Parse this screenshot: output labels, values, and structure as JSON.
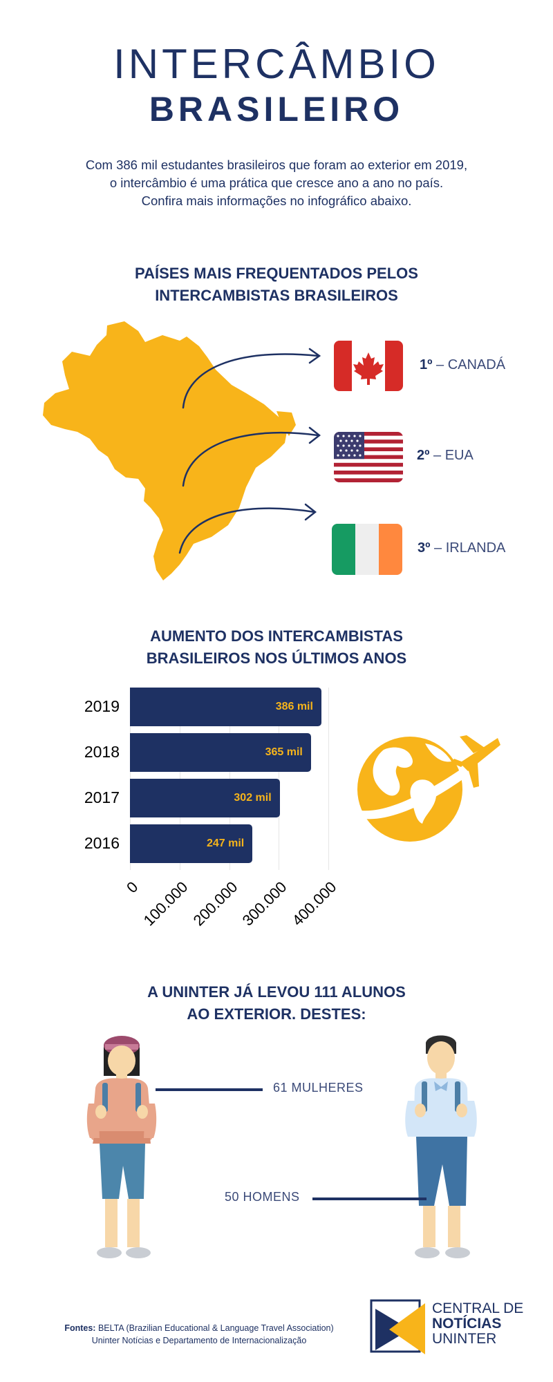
{
  "header": {
    "title_line1": "INTERCÂMBIO",
    "title_line2": "BRASILEIRO"
  },
  "intro": {
    "line1": "Com 386 mil estudantes brasileiros que foram ao exterior em 2019,",
    "line2": "o intercâmbio é uma prática que cresce ano a ano no país.",
    "line3": "Confira mais informações no infográfico abaixo."
  },
  "countries": {
    "title_line1": "PAÍSES MAIS FREQUENTADOS PELOS",
    "title_line2": "INTERCAMBISTAS BRASILEIROS",
    "items": [
      {
        "position": "1º",
        "separator": " – ",
        "name": "CANADÁ",
        "flag_icon": "canada-flag-icon"
      },
      {
        "position": "2º",
        "separator": " – ",
        "name": "EUA",
        "flag_icon": "usa-flag-icon"
      },
      {
        "position": "3º",
        "separator": " – ",
        "name": "IRLANDA",
        "flag_icon": "ireland-flag-icon"
      }
    ],
    "map_icon": "brazil-map-icon",
    "map_color": "#f8b41a"
  },
  "growth": {
    "title_line1": "AUMENTO DOS INTERCAMBISTAS",
    "title_line2": "BRASILEIROS NOS ÚLTIMOS ANOS",
    "icon": "globe-airplane-icon"
  },
  "chart_data": {
    "type": "bar",
    "orientation": "horizontal",
    "categories": [
      "2019",
      "2018",
      "2017",
      "2016"
    ],
    "values": [
      386000,
      365000,
      302000,
      247000
    ],
    "data_labels": [
      "386 mil",
      "365 mil",
      "302 mil",
      "247 mil"
    ],
    "xlim": [
      0,
      400000
    ],
    "x_ticks": [
      "0",
      "100.000",
      "200.000",
      "300.000",
      "400.000"
    ],
    "title": "",
    "xlabel": "",
    "ylabel": "",
    "bar_color": "#1e3163",
    "label_color": "#f6b41b",
    "grid": true
  },
  "uninter": {
    "title_line1": "A UNINTER JÁ LEVOU 111 ALUNOS",
    "title_line2": "AO EXTERIOR. DESTES:",
    "women_label": "61 MULHERES",
    "men_label": "50 HOMENS",
    "woman_icon": "female-student-icon",
    "man_icon": "male-student-icon"
  },
  "footer": {
    "sources_label": "Fontes:",
    "sources_line1": "BELTA (Brazilian Educational & Language Travel Association)",
    "sources_line2": "Uninter Notícias e Departamento de Internacionalização",
    "brand_line1": "CENTRAL DE",
    "brand_line2": "NOTÍCIAS",
    "brand_line3": "UNINTER",
    "logo_icon": "central-noticias-logo-icon"
  }
}
